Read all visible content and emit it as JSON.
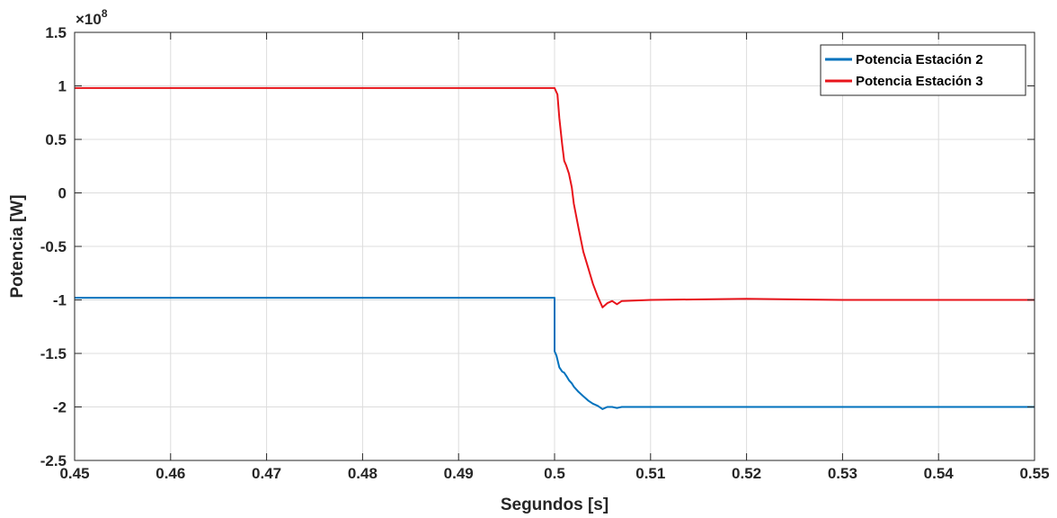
{
  "chart_data": {
    "type": "line",
    "title": "",
    "xlabel": "Segundos [s]",
    "ylabel": "Potencia [W]",
    "y_exponent_label": "×10^8",
    "y_exponent_base": "×10",
    "y_exponent_power": "8",
    "xlim": [
      0.45,
      0.55
    ],
    "ylim": [
      -2.5,
      1.5
    ],
    "grid": true,
    "legend_position": "top-right",
    "x_ticks": [
      0.45,
      0.46,
      0.47,
      0.48,
      0.49,
      0.5,
      0.51,
      0.52,
      0.53,
      0.54,
      0.55
    ],
    "x_tick_labels": [
      "0.45",
      "0.46",
      "0.47",
      "0.48",
      "0.49",
      "0.5",
      "0.51",
      "0.52",
      "0.53",
      "0.54",
      "0.55"
    ],
    "y_ticks": [
      -2.5,
      -2,
      -1.5,
      -1,
      -0.5,
      0,
      0.5,
      1,
      1.5
    ],
    "y_tick_labels": [
      "-2.5",
      "-2",
      "-1.5",
      "-1",
      "-0.5",
      "0",
      "0.5",
      "1",
      "1.5"
    ],
    "series": [
      {
        "name": "Potencia Estación 2",
        "color": "#0072BD",
        "x": [
          0.45,
          0.5,
          0.5,
          0.5002,
          0.5005,
          0.5008,
          0.501,
          0.5013,
          0.5015,
          0.5018,
          0.502,
          0.5025,
          0.503,
          0.5035,
          0.504,
          0.5045,
          0.505,
          0.5055,
          0.506,
          0.5065,
          0.507,
          0.51,
          0.52,
          0.53,
          0.54,
          0.55
        ],
        "y": [
          -0.98,
          -0.98,
          -1.48,
          -1.52,
          -1.63,
          -1.67,
          -1.68,
          -1.72,
          -1.75,
          -1.78,
          -1.81,
          -1.86,
          -1.9,
          -1.94,
          -1.97,
          -1.99,
          -2.02,
          -2.0,
          -2.0,
          -2.01,
          -2.0,
          -2.0,
          -2.0,
          -2.0,
          -2.0,
          -2.0
        ]
      },
      {
        "name": "Potencia Estación 3",
        "color": "#E8141B",
        "x": [
          0.45,
          0.5,
          0.5003,
          0.5005,
          0.5008,
          0.501,
          0.5012,
          0.5015,
          0.5018,
          0.502,
          0.5025,
          0.503,
          0.5035,
          0.504,
          0.5045,
          0.505,
          0.5055,
          0.506,
          0.5065,
          0.507,
          0.51,
          0.52,
          0.53,
          0.54,
          0.55
        ],
        "y": [
          0.98,
          0.98,
          0.92,
          0.7,
          0.45,
          0.3,
          0.26,
          0.18,
          0.05,
          -0.1,
          -0.33,
          -0.55,
          -0.7,
          -0.85,
          -0.97,
          -1.07,
          -1.03,
          -1.01,
          -1.04,
          -1.01,
          -1.0,
          -0.99,
          -1.0,
          -1.0,
          -1.0
        ]
      }
    ]
  }
}
